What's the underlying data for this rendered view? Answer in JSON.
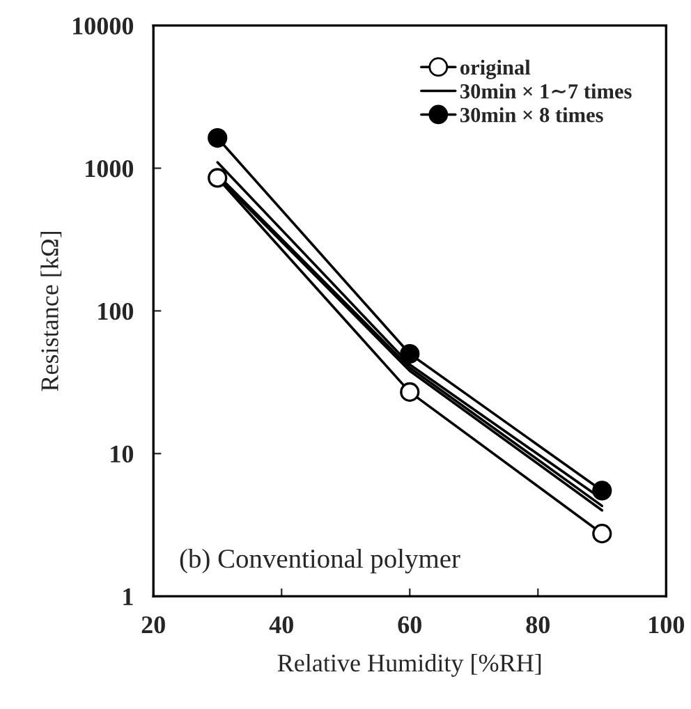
{
  "chart_data": {
    "type": "line",
    "xlabel": "Relative Humidity [%RH]",
    "ylabel": "Resistance [kΩ]",
    "x": [
      30,
      60,
      90
    ],
    "series": [
      {
        "name": "original",
        "color": "#000000",
        "values": [
          855,
          27,
          2.75
        ],
        "marker": "circle",
        "colors": [
          "#ffffff",
          "#ffffff",
          "#ffffff"
        ]
      },
      {
        "name": "30min × 1∼7 times",
        "color": "#000000",
        "values": [
          1100,
          42,
          4.8
        ],
        "marker": "none"
      },
      {
        "color": "#000000",
        "values": [
          900,
          40,
          4.3
        ],
        "marker": "none"
      },
      {
        "color": "#000000",
        "values": [
          870,
          38,
          4.0
        ],
        "marker": "none"
      },
      {
        "name": "30min × 8 times",
        "color": "#000000",
        "values": [
          1630,
          50,
          5.5
        ],
        "marker": "circle",
        "colors": [
          "#000000",
          "#000000",
          "#000000"
        ]
      }
    ],
    "log": "y",
    "xlim": [
      20,
      100
    ],
    "xticks": [
      20,
      40,
      60,
      80,
      100
    ],
    "ylim": [
      1,
      10000
    ],
    "yticks": [
      1,
      10,
      100,
      1000,
      10000
    ],
    "grid": false,
    "legend": "top right",
    "line_style": "solid",
    "annotations": [
      "(b) Conventional polymer"
    ]
  }
}
